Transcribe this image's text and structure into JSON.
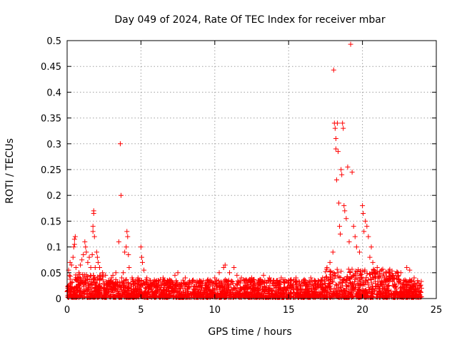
{
  "chart_data": {
    "type": "scatter",
    "title": "Day 049 of 2024, Rate Of TEC Index for receiver mbar",
    "xlabel": "GPS time / hours",
    "ylabel": "ROTI / TECUs",
    "xlim": [
      0,
      25
    ],
    "ylim": [
      0,
      0.5
    ],
    "xticks": [
      "0",
      "5",
      "10",
      "15",
      "20",
      "25"
    ],
    "yticks": [
      "0",
      "0.05",
      "0.1",
      "0.15",
      "0.2",
      "0.25",
      "0.3",
      "0.35",
      "0.4",
      "0.45",
      "0.5"
    ],
    "grid": true,
    "marker": "plus",
    "color": "#ff0000",
    "series": [
      {
        "values": [
          [
            0.05,
            0.02
          ],
          [
            0.1,
            0.055
          ],
          [
            0.15,
            0.045
          ],
          [
            0.2,
            0.07
          ],
          [
            0.25,
            0.03
          ],
          [
            0.3,
            0.065
          ],
          [
            0.4,
            0.08
          ],
          [
            0.45,
            0.1
          ],
          [
            0.5,
            0.115
          ],
          [
            0.5,
            0.105
          ],
          [
            0.55,
            0.12
          ],
          [
            0.6,
            0.06
          ],
          [
            0.7,
            0.04
          ],
          [
            0.8,
            0.05
          ],
          [
            0.9,
            0.065
          ],
          [
            1.0,
            0.075
          ],
          [
            1.1,
            0.085
          ],
          [
            1.2,
            0.11
          ],
          [
            1.25,
            0.1
          ],
          [
            1.3,
            0.09
          ],
          [
            1.4,
            0.07
          ],
          [
            1.5,
            0.08
          ],
          [
            1.6,
            0.06
          ],
          [
            1.7,
            0.085
          ],
          [
            1.75,
            0.14
          ],
          [
            1.75,
            0.13
          ],
          [
            1.8,
            0.165
          ],
          [
            1.8,
            0.17
          ],
          [
            1.85,
            0.12
          ],
          [
            1.9,
            0.06
          ],
          [
            2.0,
            0.09
          ],
          [
            2.05,
            0.08
          ],
          [
            2.1,
            0.07
          ],
          [
            2.2,
            0.06
          ],
          [
            2.4,
            0.05
          ],
          [
            2.6,
            0.045
          ],
          [
            2.8,
            0.035
          ],
          [
            3.0,
            0.04
          ],
          [
            3.1,
            0.045
          ],
          [
            3.3,
            0.05
          ],
          [
            3.5,
            0.11
          ],
          [
            3.6,
            0.3
          ],
          [
            3.65,
            0.2
          ],
          [
            3.7,
            0.04
          ],
          [
            3.8,
            0.05
          ],
          [
            3.9,
            0.09
          ],
          [
            4.0,
            0.1
          ],
          [
            4.05,
            0.13
          ],
          [
            4.1,
            0.12
          ],
          [
            4.15,
            0.085
          ],
          [
            4.2,
            0.06
          ],
          [
            4.4,
            0.04
          ],
          [
            4.6,
            0.03
          ],
          [
            4.8,
            0.04
          ],
          [
            5.0,
            0.1
          ],
          [
            5.05,
            0.08
          ],
          [
            5.1,
            0.07
          ],
          [
            5.2,
            0.055
          ],
          [
            5.4,
            0.04
          ],
          [
            5.6,
            0.035
          ],
          [
            6.0,
            0.03
          ],
          [
            6.5,
            0.04
          ],
          [
            7.0,
            0.035
          ],
          [
            7.3,
            0.045
          ],
          [
            7.5,
            0.05
          ],
          [
            8.0,
            0.04
          ],
          [
            8.5,
            0.035
          ],
          [
            9.0,
            0.03
          ],
          [
            9.5,
            0.035
          ],
          [
            10.0,
            0.04
          ],
          [
            10.3,
            0.05
          ],
          [
            10.6,
            0.06
          ],
          [
            10.7,
            0.065
          ],
          [
            11.0,
            0.05
          ],
          [
            11.3,
            0.06
          ],
          [
            11.5,
            0.045
          ],
          [
            11.8,
            0.04
          ],
          [
            12.0,
            0.035
          ],
          [
            12.5,
            0.04
          ],
          [
            13.0,
            0.035
          ],
          [
            13.3,
            0.045
          ],
          [
            13.7,
            0.04
          ],
          [
            14.0,
            0.035
          ],
          [
            14.5,
            0.04
          ],
          [
            15.0,
            0.035
          ],
          [
            15.5,
            0.04
          ],
          [
            16.0,
            0.035
          ],
          [
            16.5,
            0.04
          ],
          [
            17.0,
            0.035
          ],
          [
            17.3,
            0.04
          ],
          [
            17.6,
            0.06
          ],
          [
            17.8,
            0.07
          ],
          [
            18.0,
            0.09
          ],
          [
            18.05,
            0.443
          ],
          [
            18.1,
            0.34
          ],
          [
            18.15,
            0.33
          ],
          [
            18.2,
            0.31
          ],
          [
            18.2,
            0.29
          ],
          [
            18.25,
            0.23
          ],
          [
            18.3,
            0.34
          ],
          [
            18.35,
            0.285
          ],
          [
            18.4,
            0.185
          ],
          [
            18.45,
            0.14
          ],
          [
            18.5,
            0.125
          ],
          [
            18.55,
            0.25
          ],
          [
            18.6,
            0.24
          ],
          [
            18.65,
            0.34
          ],
          [
            18.7,
            0.33
          ],
          [
            18.75,
            0.18
          ],
          [
            18.8,
            0.17
          ],
          [
            18.9,
            0.155
          ],
          [
            19.0,
            0.255
          ],
          [
            19.1,
            0.11
          ],
          [
            19.2,
            0.493
          ],
          [
            19.3,
            0.245
          ],
          [
            19.4,
            0.14
          ],
          [
            19.5,
            0.12
          ],
          [
            19.6,
            0.1
          ],
          [
            19.8,
            0.09
          ],
          [
            20.0,
            0.18
          ],
          [
            20.05,
            0.165
          ],
          [
            20.1,
            0.13
          ],
          [
            20.2,
            0.15
          ],
          [
            20.3,
            0.14
          ],
          [
            20.4,
            0.12
          ],
          [
            20.5,
            0.08
          ],
          [
            20.6,
            0.1
          ],
          [
            20.7,
            0.07
          ],
          [
            21.0,
            0.06
          ],
          [
            21.3,
            0.055
          ],
          [
            21.6,
            0.05
          ],
          [
            22.0,
            0.045
          ],
          [
            22.3,
            0.04
          ],
          [
            22.6,
            0.05
          ],
          [
            23.0,
            0.06
          ],
          [
            23.2,
            0.055
          ],
          [
            23.5,
            0.04
          ],
          [
            23.8,
            0.03
          ],
          [
            24.0,
            0.02
          ]
        ]
      }
    ]
  }
}
